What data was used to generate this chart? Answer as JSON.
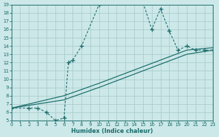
{
  "xlabel": "Humidex (Indice chaleur)",
  "background_color": "#cce8e8",
  "grid_color": "#aacccc",
  "line_color": "#1a6b6b",
  "xlim": [
    0,
    23
  ],
  "ylim": [
    5,
    19
  ],
  "xticks": [
    0,
    1,
    2,
    3,
    4,
    5,
    6,
    7,
    8,
    9,
    10,
    11,
    12,
    13,
    14,
    15,
    16,
    17,
    18,
    19,
    20,
    21,
    22,
    23
  ],
  "yticks": [
    5,
    6,
    7,
    8,
    9,
    10,
    11,
    12,
    13,
    14,
    15,
    16,
    17,
    18,
    19
  ],
  "curve1_x": [
    0,
    2,
    3,
    4,
    5,
    6,
    6.5,
    7,
    8,
    10,
    11,
    12,
    13,
    14,
    15,
    16,
    17,
    18,
    19,
    20,
    21,
    22,
    23
  ],
  "curve1_y": [
    6.5,
    6.5,
    6.5,
    6,
    5,
    5.3,
    12,
    12.3,
    14,
    19,
    19.3,
    19.3,
    19.3,
    19.3,
    19.3,
    16,
    18.5,
    15.8,
    13.5,
    14,
    13.5,
    13.5,
    13.5
  ],
  "curve2_x": [
    0,
    6,
    10,
    15,
    20,
    23
  ],
  "curve2_y": [
    6.5,
    7.5,
    9,
    11,
    13,
    13.5
  ],
  "curve3_x": [
    0,
    6,
    10,
    15,
    20,
    23
  ],
  "curve3_y": [
    6.5,
    8,
    9.5,
    11.5,
    13.5,
    13.8
  ]
}
